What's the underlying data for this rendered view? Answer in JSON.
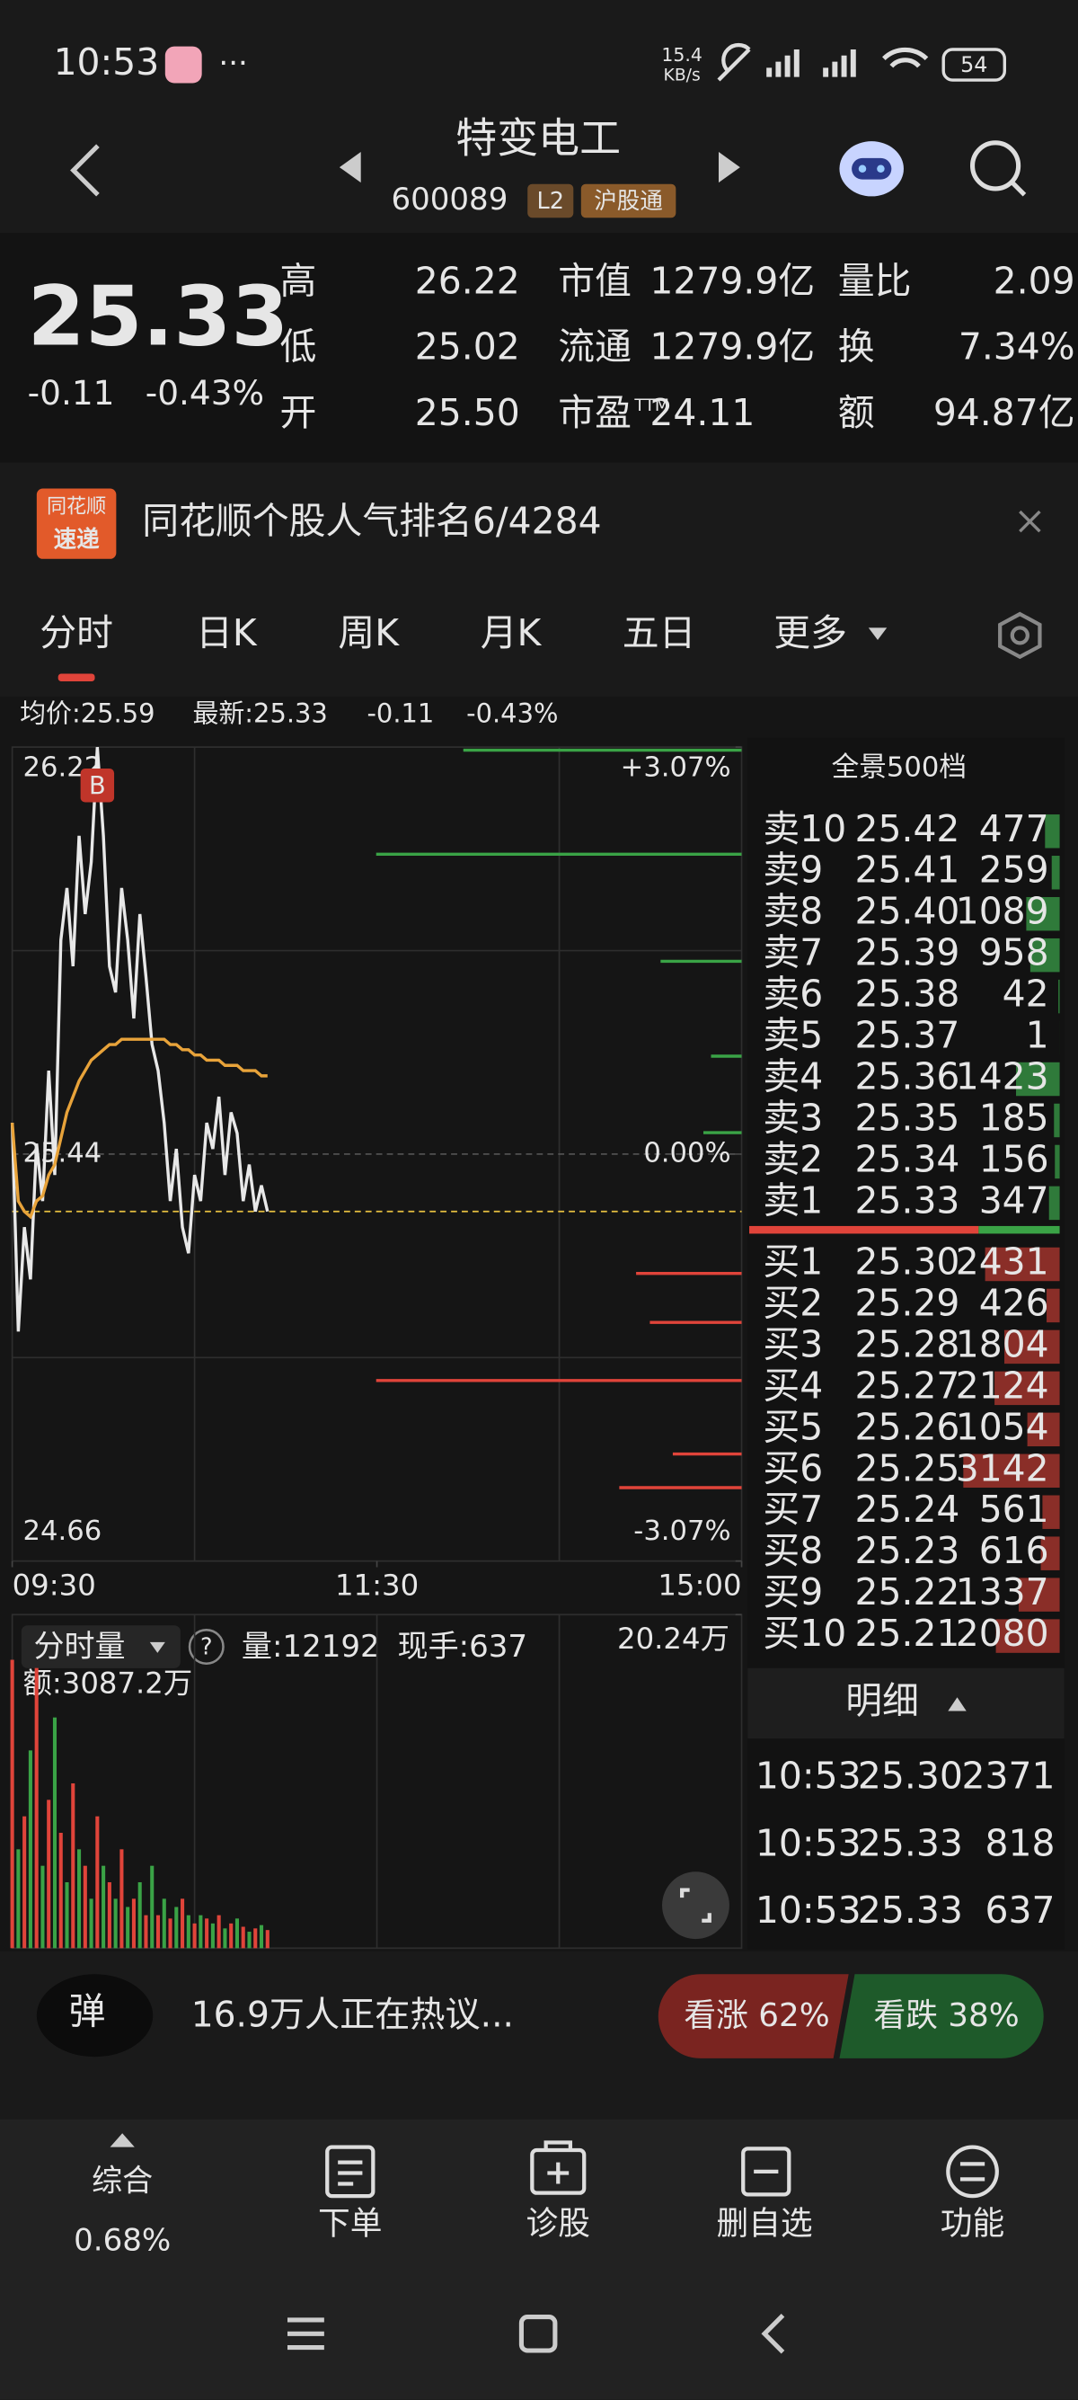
{
  "status_bar": {
    "time": "10:53",
    "dots": "···",
    "speed": "15.4",
    "speed_unit": "KB/s",
    "battery": "54"
  },
  "header": {
    "title": "特变电工",
    "code": "600089",
    "badge_l2": "L2",
    "badge_connect": "沪股通"
  },
  "quote": {
    "price": "25.33",
    "change": "-0.11",
    "change_pct": "-0.43%",
    "stats": [
      [
        {
          "label": "高",
          "value": "26.22",
          "color": "#ef5343"
        },
        {
          "label": "市值",
          "value": "1279.9亿",
          "color": "#e6e6e6"
        },
        {
          "label": "量比",
          "value": "2.09",
          "color": "#ef5343"
        }
      ],
      [
        {
          "label": "低",
          "value": "25.02",
          "color": "#4cb35a"
        },
        {
          "label": "流通",
          "value": "1279.9亿",
          "color": "#e6e6e6"
        },
        {
          "label": "换",
          "value": "7.34%",
          "color": "#e6e6e6"
        }
      ],
      [
        {
          "label": "开",
          "value": "25.50",
          "color": "#ef5343"
        },
        {
          "label": "市盈",
          "label_sup": "TTM",
          "value": "24.11",
          "color": "#e6e6e6"
        },
        {
          "label": "额",
          "value": "94.87亿",
          "color": "#e6e6e6"
        }
      ]
    ]
  },
  "banner": {
    "logo_top": "同花顺",
    "logo_bottom": "速递",
    "text": "同花顺个股人气排名6/4284"
  },
  "tabs": [
    "分时",
    "日K",
    "周K",
    "月K",
    "五日",
    "更多"
  ],
  "chart_info": {
    "avg": "均价:25.59",
    "latest": "最新:25.33",
    "change": "-0.11",
    "change_pct": "-0.43%"
  },
  "intraday": {
    "type": "line",
    "marker_label": "B",
    "x": [
      0,
      2,
      4,
      6,
      8,
      10,
      12,
      14,
      16,
      18,
      20,
      22,
      24,
      26,
      28,
      30,
      32,
      34,
      36,
      38,
      40,
      42,
      44,
      46,
      48,
      50,
      52,
      54,
      56,
      58,
      60,
      62,
      64,
      66,
      68,
      70,
      72,
      74,
      76,
      78,
      80,
      82,
      84
    ],
    "xlim": [
      0,
      240
    ],
    "xticks": [
      {
        "value": 0,
        "label": "09:30"
      },
      {
        "value": 120,
        "label": "11:30"
      },
      {
        "value": 240,
        "label": "15:00"
      }
    ],
    "ylim": [
      24.66,
      26.22
    ],
    "yticks": [
      26.22,
      25.44,
      24.66
    ],
    "y2lim": [
      -3.07,
      3.07
    ],
    "y2ticks": [
      {
        "value": 3.07,
        "label": "+3.07%"
      },
      {
        "value": 0,
        "label": "0.00%"
      },
      {
        "value": -3.07,
        "label": "-3.07%"
      }
    ],
    "series": [
      {
        "color": "#e8e8e8",
        "values": [
          25.5,
          25.1,
          25.3,
          25.2,
          25.46,
          25.35,
          25.6,
          25.4,
          25.85,
          25.95,
          25.8,
          26.05,
          25.9,
          26.0,
          26.22,
          26.05,
          25.8,
          25.75,
          25.95,
          25.85,
          25.7,
          25.9,
          25.78,
          25.65,
          25.6,
          25.5,
          25.35,
          25.45,
          25.3,
          25.25,
          25.4,
          25.35,
          25.5,
          25.45,
          25.55,
          25.4,
          25.52,
          25.48,
          25.35,
          25.42,
          25.33,
          25.38,
          25.33
        ]
      },
      {
        "color": "#e8a33a",
        "values": [
          25.5,
          25.35,
          25.33,
          25.32,
          25.35,
          25.36,
          25.4,
          25.42,
          25.47,
          25.52,
          25.55,
          25.58,
          25.6,
          25.62,
          25.63,
          25.64,
          25.65,
          25.65,
          25.66,
          25.66,
          25.66,
          25.66,
          25.66,
          25.66,
          25.66,
          25.66,
          25.65,
          25.65,
          25.64,
          25.64,
          25.63,
          25.63,
          25.62,
          25.62,
          25.62,
          25.61,
          25.61,
          25.61,
          25.6,
          25.6,
          25.6,
          25.59,
          25.59
        ]
      }
    ]
  },
  "volume_chart": {
    "type": "bar",
    "label": "分时量",
    "help": "?",
    "volume": "量:12192",
    "current": "现手:637",
    "amount": "额:3087.2万",
    "colors": [
      "#e0443a",
      "#3aa346"
    ],
    "ylim": [
      0,
      20.24
    ],
    "yticks": [
      {
        "value": 20.24,
        "label": "20.24万"
      }
    ],
    "values": [
      17.5,
      6,
      8,
      12,
      17,
      5,
      9,
      14,
      7,
      4,
      10,
      6,
      5,
      3,
      8,
      5,
      4,
      3,
      6,
      2.5,
      3,
      4,
      2,
      5,
      2,
      3,
      1.8,
      2.5,
      3,
      2,
      1.5,
      2,
      1.8,
      1.5,
      2,
      1.2,
      1.5,
      1.8,
      1.3,
      1,
      1.2,
      1.4,
      1.1
    ]
  },
  "order_book": {
    "title": "全景500档",
    "asks": [
      {
        "label": "卖10",
        "price": "25.42",
        "volume": 477
      },
      {
        "label": "卖9",
        "price": "25.41",
        "volume": 259
      },
      {
        "label": "卖8",
        "price": "25.40",
        "volume": 1089
      },
      {
        "label": "卖7",
        "price": "25.39",
        "volume": 958
      },
      {
        "label": "卖6",
        "price": "25.38",
        "volume": 42
      },
      {
        "label": "卖5",
        "price": "25.37",
        "volume": 1
      },
      {
        "label": "卖4",
        "price": "25.36",
        "volume": 1423
      },
      {
        "label": "卖3",
        "price": "25.35",
        "volume": 185
      },
      {
        "label": "卖2",
        "price": "25.34",
        "volume": 156
      },
      {
        "label": "卖1",
        "price": "25.33",
        "volume": 347
      }
    ],
    "bids": [
      {
        "label": "买1",
        "price": "25.30",
        "volume": 2431
      },
      {
        "label": "买2",
        "price": "25.29",
        "volume": 426
      },
      {
        "label": "买3",
        "price": "25.28",
        "volume": 1804
      },
      {
        "label": "买4",
        "price": "25.27",
        "volume": 2124
      },
      {
        "label": "买5",
        "price": "25.26",
        "volume": 1054
      },
      {
        "label": "买6",
        "price": "25.25",
        "volume": 3142
      },
      {
        "label": "买7",
        "price": "25.24",
        "volume": 561
      },
      {
        "label": "买8",
        "price": "25.23",
        "volume": 616
      },
      {
        "label": "买9",
        "price": "25.22",
        "volume": 1337
      },
      {
        "label": "买10",
        "price": "25.21",
        "volume": 2080
      }
    ]
  },
  "trades": {
    "title": "明细",
    "rows": [
      {
        "time": "10:53",
        "price": "25.30",
        "volume": 2371,
        "color": "#4cb35a"
      },
      {
        "time": "10:53",
        "price": "25.33",
        "volume": 818,
        "color": "#ef5343"
      },
      {
        "time": "10:53",
        "price": "25.33",
        "volume": 637,
        "color": "#ef5343"
      }
    ]
  },
  "discussion": {
    "icon": "弹",
    "text": "16.9万人正在热议...",
    "bull": "看涨 62%",
    "bear": "看跌 38%"
  },
  "nav": {
    "summary": "综合",
    "summary_value": "0.68%",
    "items": [
      "下单",
      "诊股",
      "删自选",
      "功能"
    ]
  }
}
